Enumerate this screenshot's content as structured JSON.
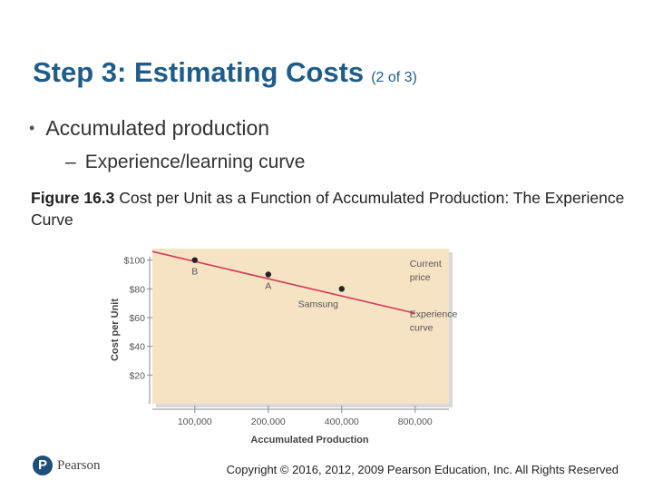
{
  "slide": {
    "title": "Step 3: Estimating Costs",
    "title_suffix": "(2 of 3)",
    "bullet": "Accumulated production",
    "subbullet": "Experience/learning curve",
    "figure_label": "Figure 16.3",
    "figure_caption": "Cost per Unit as a Function of Accumulated Production: The Experience Curve"
  },
  "footer": {
    "logo_mark": "P",
    "logo_text": "Pearson",
    "copyright": "Copyright © 2016, 2012, 2009 Pearson Education, Inc. All Rights Reserved"
  },
  "colors": {
    "title": "#1f5c8a",
    "panel": "#f6e3c4",
    "curve": "#d63a5a",
    "axis": "#8a8a8a",
    "text": "#555555"
  },
  "chart_data": {
    "type": "line",
    "x_axis_type": "log",
    "xlabel": "Accumulated Production",
    "ylabel": "Cost per Unit",
    "x_ticks": [
      {
        "value": 100000,
        "label": "100,000"
      },
      {
        "value": 200000,
        "label": "200,000"
      },
      {
        "value": 400000,
        "label": "400,000"
      },
      {
        "value": 800000,
        "label": "800,000"
      }
    ],
    "y_ticks": [
      {
        "value": 100,
        "label": "$100"
      },
      {
        "value": 80,
        "label": "$80"
      },
      {
        "value": 60,
        "label": "$60"
      },
      {
        "value": 40,
        "label": "$40"
      },
      {
        "value": 20,
        "label": "$20"
      }
    ],
    "xlim": [
      67000,
      1100000
    ],
    "ylim": [
      0,
      108
    ],
    "curve": [
      {
        "x": 67000,
        "y": 106
      },
      {
        "x": 800000,
        "y": 63
      }
    ],
    "points": [
      {
        "x": 100000,
        "y": 100,
        "label": "B"
      },
      {
        "x": 200000,
        "y": 90,
        "label": "A"
      },
      {
        "x": 400000,
        "y": 80,
        "label": "Samsung"
      }
    ],
    "annotations": {
      "current_price": [
        "Current",
        "price"
      ],
      "experience_curve": [
        "Experience",
        "curve"
      ]
    },
    "grid": true
  }
}
